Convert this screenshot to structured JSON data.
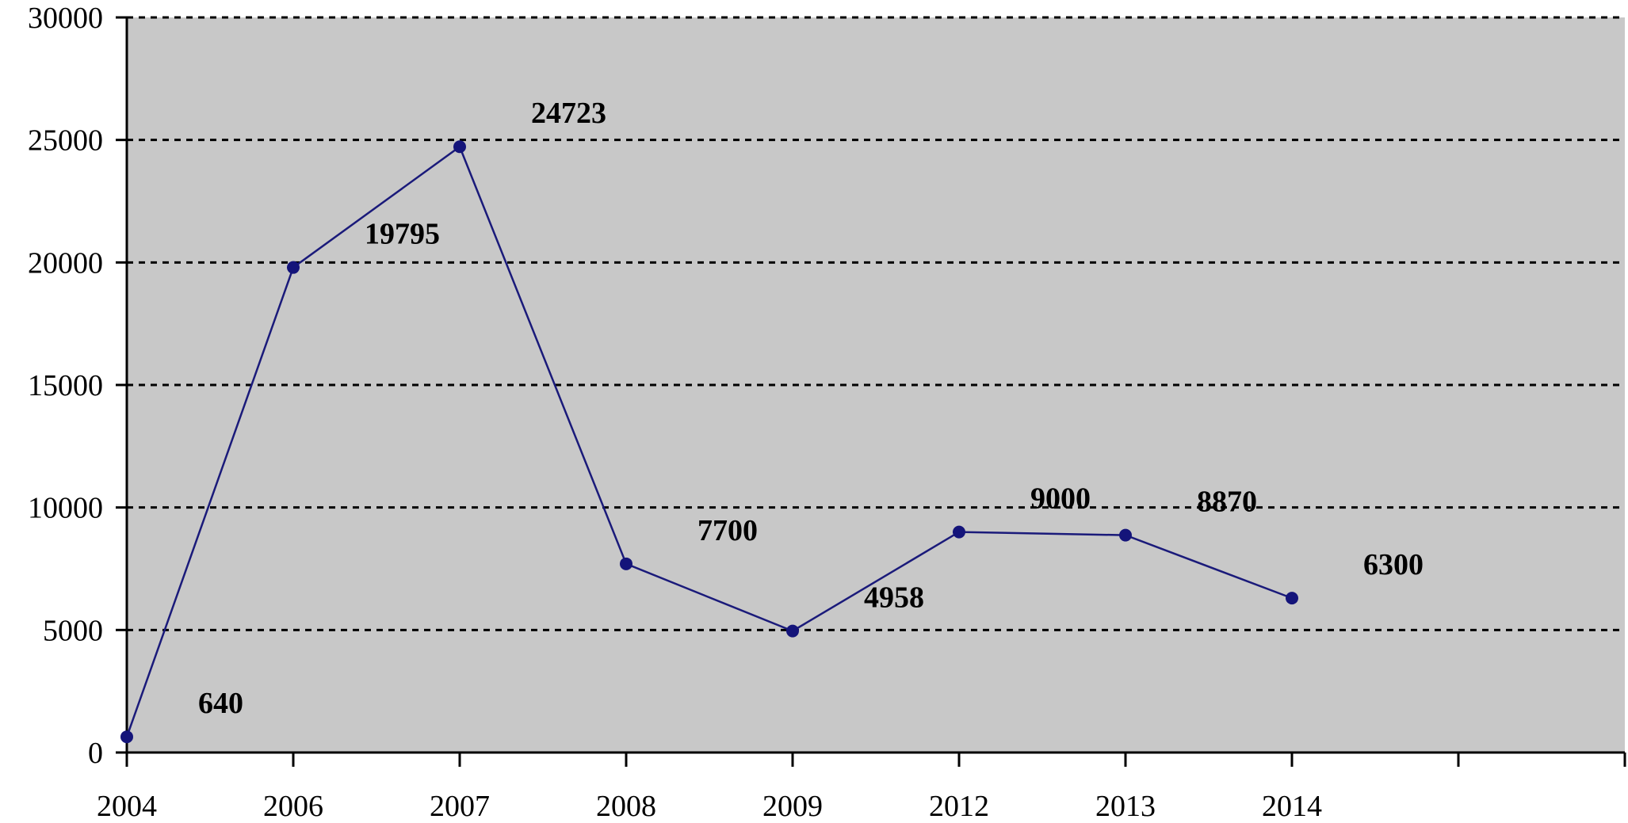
{
  "chart_data": {
    "type": "line",
    "categories": [
      "2004",
      "2006",
      "2007",
      "2008",
      "2009",
      "2012",
      "2013",
      "2014"
    ],
    "series": [
      {
        "values": [
          640,
          19795,
          24723,
          7700,
          4958,
          9000,
          8870,
          6300
        ]
      }
    ],
    "data_labels": [
      "640",
      "19795",
      "24723",
      "7700",
      "4958",
      "9000",
      "8870",
      "6300"
    ],
    "y_ticks": [
      "0",
      "5000",
      "10000",
      "15000",
      "20000",
      "25000",
      "30000"
    ],
    "ylim": [
      0,
      30000
    ],
    "x_slots": 9,
    "grid": "horizontal dashed",
    "legend": "none",
    "colors": {
      "plot_background": "#c8c8c8",
      "line": "#1a1a7a",
      "marker": "#14147a",
      "gridline": "#000000",
      "axis": "#000000"
    }
  }
}
